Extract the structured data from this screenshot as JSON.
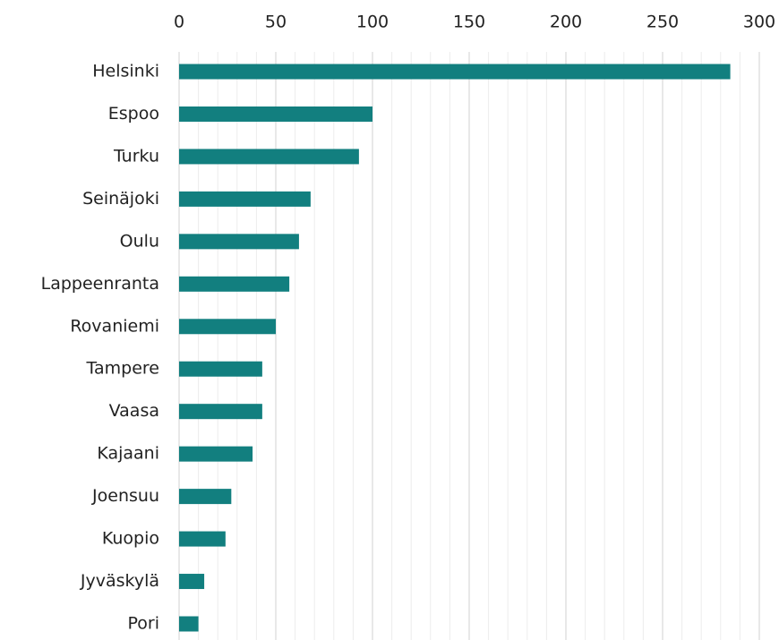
{
  "chart_data": {
    "type": "hbar",
    "categories": [
      "Helsinki",
      "Espoo",
      "Turku",
      "Seinäjoki",
      "Oulu",
      "Lappeenranta",
      "Rovaniemi",
      "Tampere",
      "Vaasa",
      "Kajaani",
      "Joensuu",
      "Kuopio",
      "Jyväskylä",
      "Pori"
    ],
    "values": [
      285,
      100,
      93,
      68,
      62,
      57,
      50,
      43,
      43,
      38,
      27,
      24,
      13,
      10
    ],
    "color": "#127f7f",
    "xlim": [
      0,
      300
    ],
    "xticks": [
      0,
      50,
      100,
      150,
      200,
      250,
      300
    ],
    "xminorticks": [
      10,
      20,
      30,
      40,
      60,
      70,
      80,
      90,
      110,
      120,
      130,
      140,
      160,
      170,
      180,
      190,
      210,
      220,
      230,
      240,
      260,
      270,
      280,
      290
    ],
    "grid": true,
    "xaxis_position": "top"
  }
}
